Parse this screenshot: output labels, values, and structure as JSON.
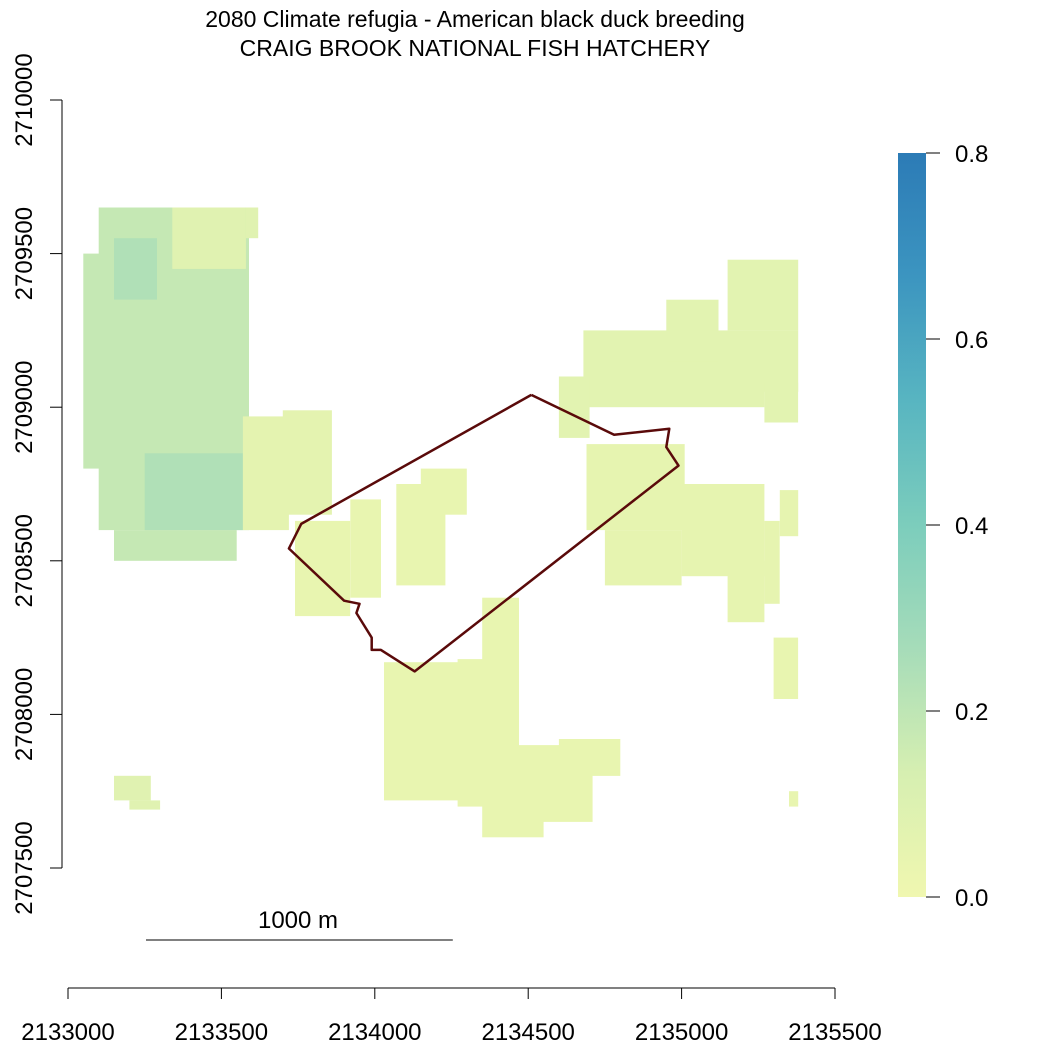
{
  "title": {
    "line1": "2080 Climate refugia - American black duck breeding",
    "line2": "CRAIG BROOK NATIONAL FISH HATCHERY"
  },
  "x_axis": {
    "min": 2133000,
    "max": 2135500,
    "ticks": [
      "2133000",
      "2133500",
      "2134000",
      "2134500",
      "2135000",
      "2135500"
    ]
  },
  "y_axis": {
    "min": 2707500,
    "max": 2710000,
    "ticks": [
      "2707500",
      "2708000",
      "2708500",
      "2709000",
      "2709500",
      "2710000"
    ]
  },
  "legend": {
    "min": 0.0,
    "max": 0.8,
    "ticks": [
      "0.0",
      "0.2",
      "0.4",
      "0.6",
      "0.8"
    ],
    "colors": [
      "#f0f7b0",
      "#d6efb1",
      "#a6dcb9",
      "#7ccdbc",
      "#58b5c1",
      "#3c95c0",
      "#2c7bb6"
    ]
  },
  "scalebar": {
    "label": "1000 m",
    "length_m": 1000
  },
  "boundary": {
    "color": "#5a0a0a",
    "vertices": [
      [
        2134510,
        2709040
      ],
      [
        2134780,
        2708910
      ],
      [
        2134960,
        2708930
      ],
      [
        2134950,
        2708870
      ],
      [
        2134990,
        2708810
      ],
      [
        2134130,
        2708140
      ],
      [
        2134020,
        2708210
      ],
      [
        2133990,
        2708210
      ],
      [
        2133990,
        2708250
      ],
      [
        2133940,
        2708330
      ],
      [
        2133950,
        2708360
      ],
      [
        2133900,
        2708370
      ],
      [
        2133720,
        2708540
      ],
      [
        2133760,
        2708620
      ],
      [
        2134510,
        2709040
      ]
    ]
  },
  "raster": {
    "cell_m": 25,
    "regions": [
      {
        "name": "west-block",
        "value": 0.18,
        "rects": [
          [
            2133100,
            2708600,
            2133590,
            2709650
          ],
          [
            2133150,
            2708500,
            2133550,
            2708600
          ],
          [
            2133050,
            2708800,
            2133110,
            2709500
          ]
        ]
      },
      {
        "name": "west-core",
        "value": 0.24,
        "rects": [
          [
            2133150,
            2709350,
            2133290,
            2709550
          ],
          [
            2133250,
            2708600,
            2133570,
            2708850
          ]
        ]
      },
      {
        "name": "northwest-light",
        "value": 0.08,
        "rects": [
          [
            2133340,
            2709450,
            2133580,
            2709650
          ],
          [
            2133580,
            2709550,
            2133620,
            2709650
          ]
        ]
      },
      {
        "name": "west-lower",
        "value": 0.06,
        "rects": [
          [
            2133570,
            2708600,
            2133720,
            2708970
          ],
          [
            2133700,
            2708650,
            2133860,
            2708990
          ]
        ]
      },
      {
        "name": "center-left",
        "value": 0.04,
        "rects": [
          [
            2133740,
            2708320,
            2133920,
            2708630
          ],
          [
            2133920,
            2708380,
            2134020,
            2708700
          ],
          [
            2134070,
            2708420,
            2134230,
            2708750
          ],
          [
            2134150,
            2708650,
            2134300,
            2708800
          ]
        ]
      },
      {
        "name": "south-strip",
        "value": 0.04,
        "rects": [
          [
            2134030,
            2707720,
            2134300,
            2708170
          ],
          [
            2134270,
            2707700,
            2134470,
            2708180
          ],
          [
            2134350,
            2708100,
            2134470,
            2708380
          ],
          [
            2134470,
            2707650,
            2134710,
            2707900
          ],
          [
            2134600,
            2707800,
            2134800,
            2707920
          ],
          [
            2134350,
            2707600,
            2134550,
            2707720
          ]
        ]
      },
      {
        "name": "east-mid",
        "value": 0.05,
        "rects": [
          [
            2134690,
            2708600,
            2135010,
            2708880
          ],
          [
            2135000,
            2708450,
            2135270,
            2708750
          ],
          [
            2134750,
            2708420,
            2135000,
            2708600
          ],
          [
            2135150,
            2708300,
            2135270,
            2708500
          ],
          [
            2135270,
            2708360,
            2135320,
            2708630
          ],
          [
            2135320,
            2708580,
            2135380,
            2708730
          ]
        ]
      },
      {
        "name": "east-north",
        "value": 0.07,
        "rects": [
          [
            2134680,
            2709000,
            2135270,
            2709250
          ],
          [
            2134950,
            2709150,
            2135120,
            2709350
          ],
          [
            2135150,
            2709250,
            2135380,
            2709480
          ],
          [
            2135200,
            2709050,
            2135380,
            2709250
          ],
          [
            2135270,
            2708950,
            2135380,
            2709080
          ],
          [
            2134600,
            2708900,
            2134700,
            2709100
          ]
        ]
      },
      {
        "name": "east-outlier",
        "value": 0.04,
        "rects": [
          [
            2135300,
            2708050,
            2135380,
            2708250
          ],
          [
            2135350,
            2707700,
            2135380,
            2707750
          ]
        ]
      },
      {
        "name": "far-southwest",
        "value": 0.08,
        "rects": [
          [
            2133150,
            2707720,
            2133270,
            2707800
          ],
          [
            2133200,
            2707690,
            2133300,
            2707720
          ]
        ]
      }
    ]
  }
}
